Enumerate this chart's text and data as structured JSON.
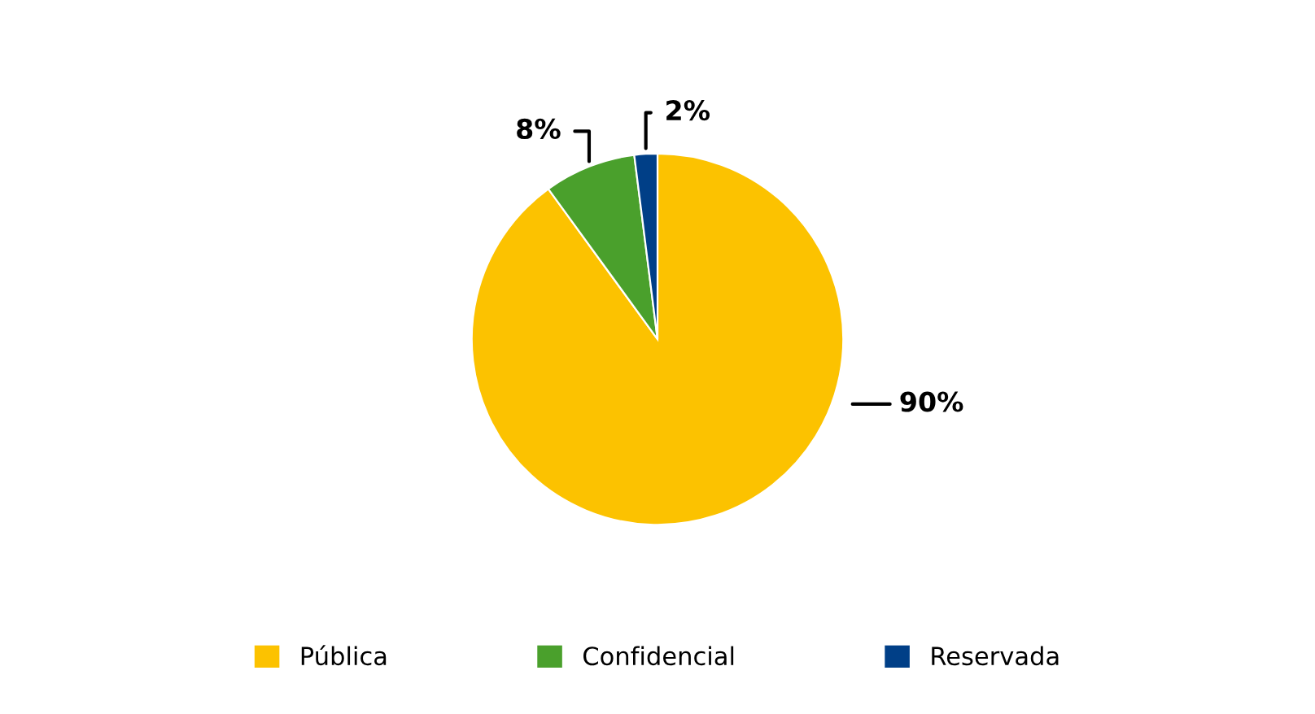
{
  "chart_data": {
    "type": "pie",
    "categories": [
      "Pública",
      "Confidencial",
      "Reservada"
    ],
    "values": [
      90,
      8,
      2
    ],
    "colors": [
      "#fcc200",
      "#4aa02c",
      "#003f87"
    ],
    "value_labels": [
      "90%",
      "8%",
      "2%"
    ],
    "legend": "bottom"
  }
}
